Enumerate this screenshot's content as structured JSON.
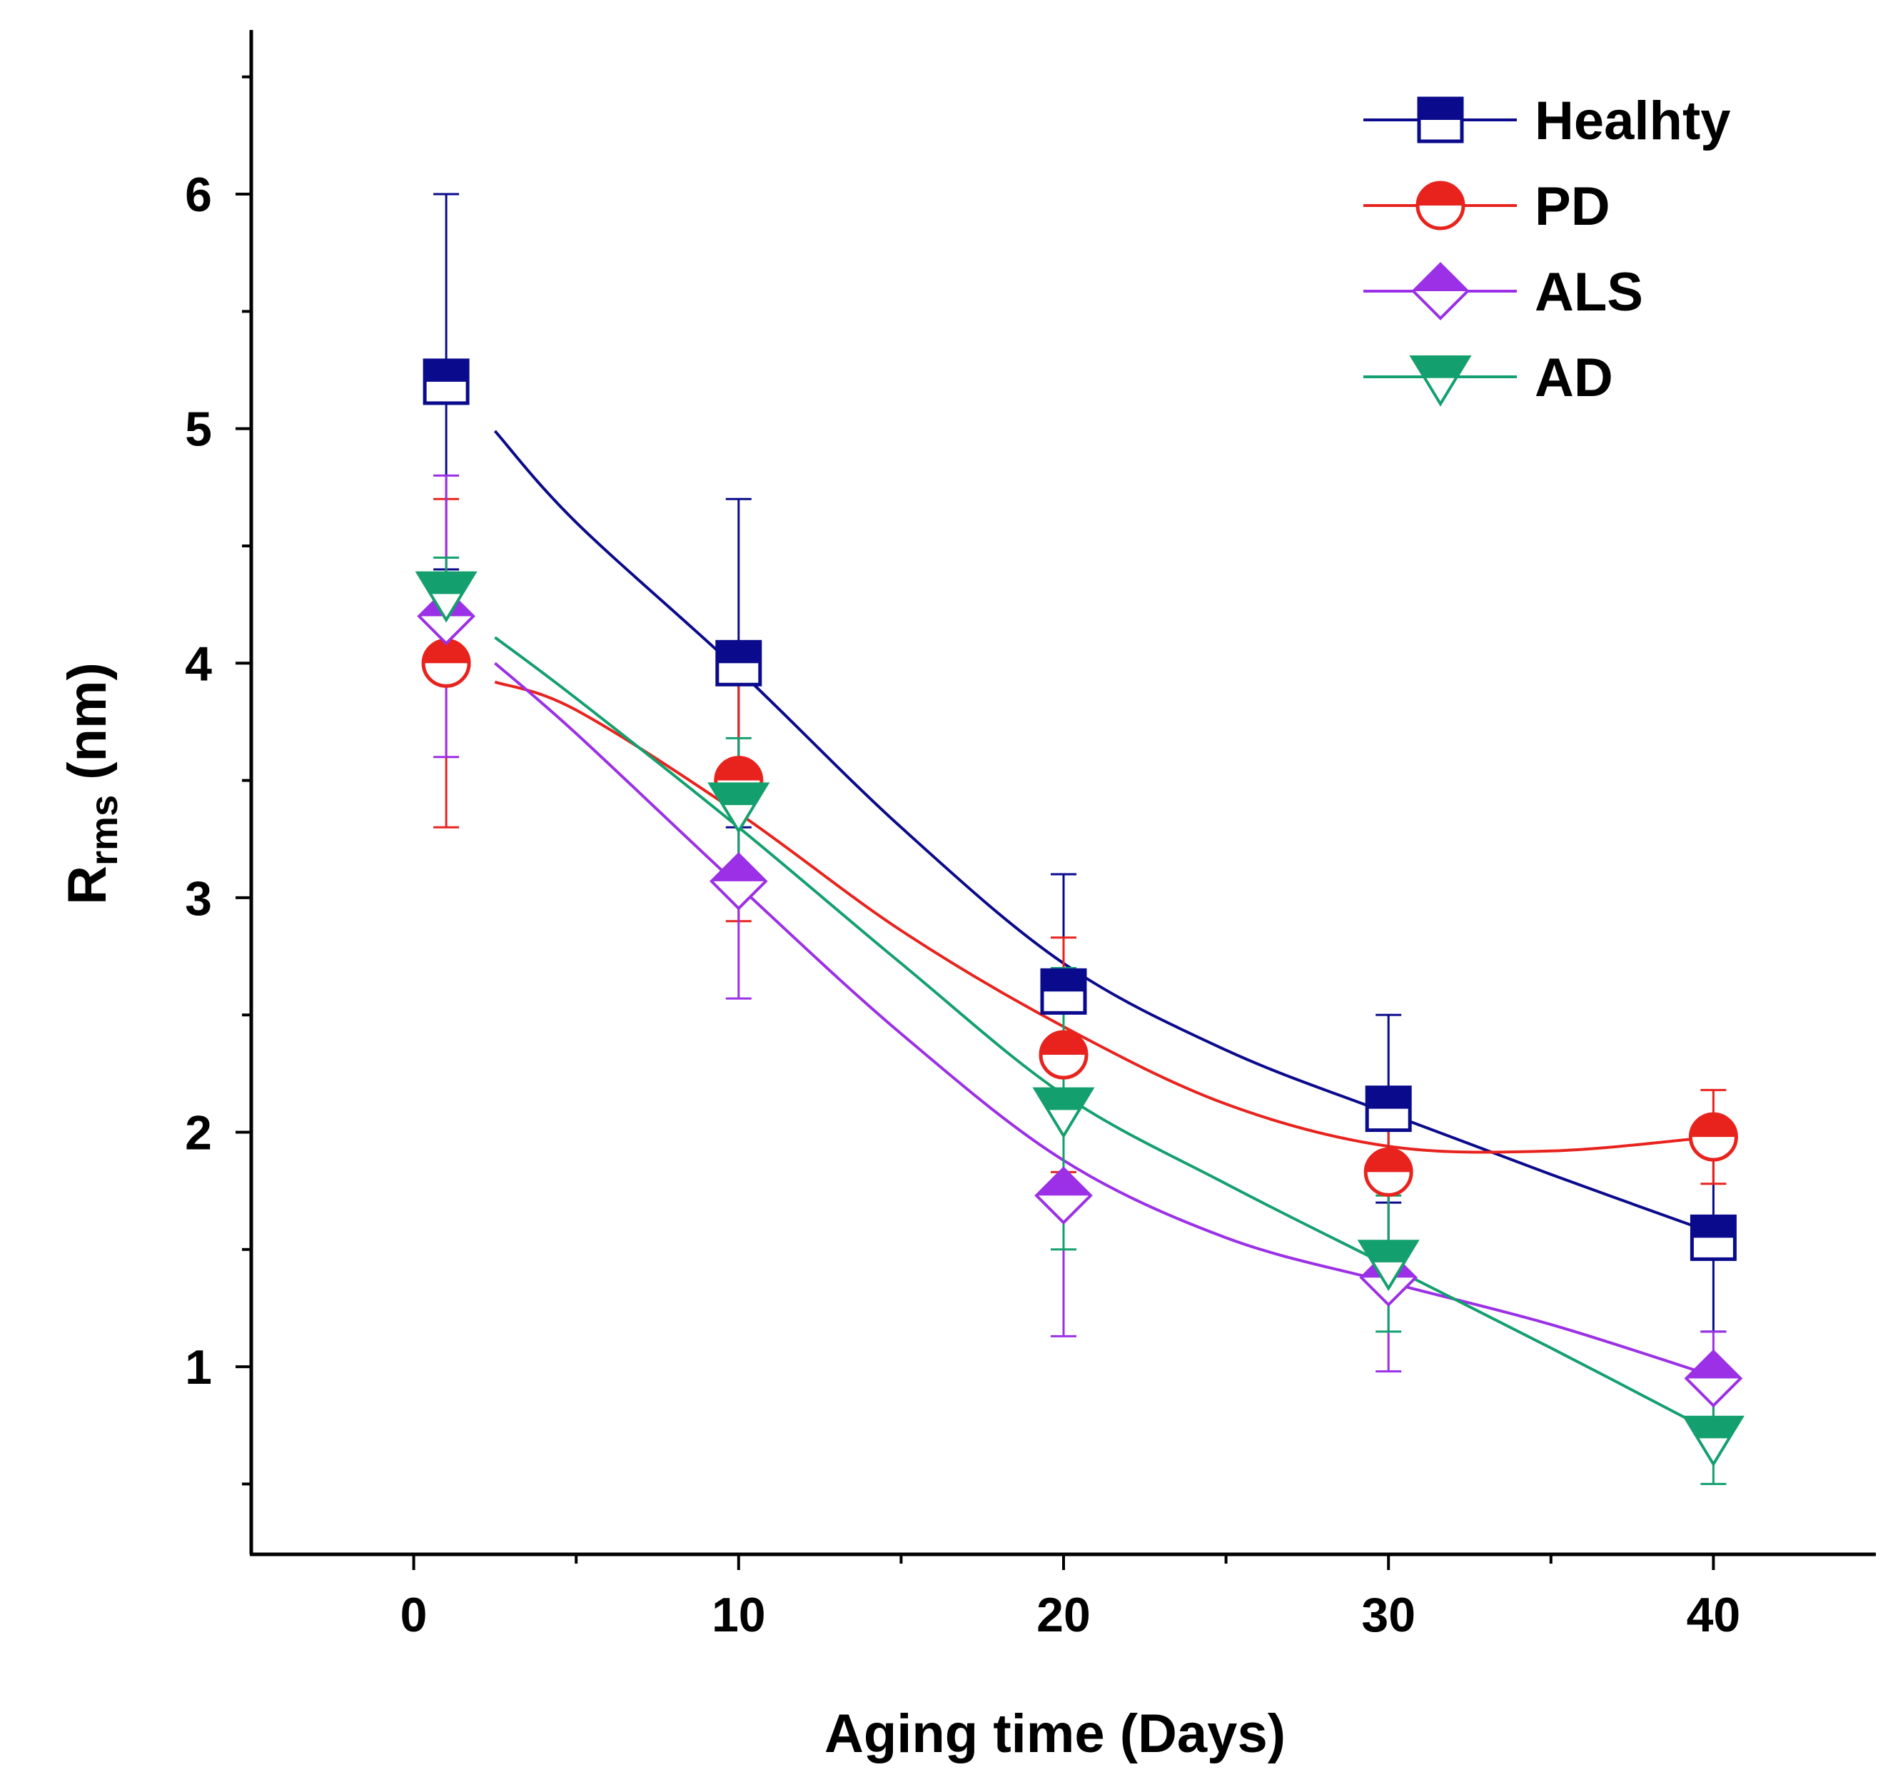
{
  "chart_data": {
    "type": "line",
    "title": "",
    "xlabel": "Aging time (Days)",
    "ylabel": {
      "main": "R",
      "sub": "rms",
      "unit": " (nm)"
    },
    "xlim": [
      -5,
      45
    ],
    "ylim": [
      0.2,
      6.7
    ],
    "x_ticks": [
      0,
      10,
      20,
      30,
      40
    ],
    "x_tick_labels": [
      "0",
      "10",
      "20",
      "30",
      "40"
    ],
    "y_ticks": [
      1,
      2,
      3,
      4,
      5,
      6
    ],
    "y_tick_labels": [
      "1",
      "2",
      "3",
      "4",
      "5",
      "6"
    ],
    "x_minor_ticks": [
      5,
      15,
      25,
      35
    ],
    "y_minor_ticks": [
      0.5,
      1.5,
      2.5,
      3.5,
      4.5,
      5.5,
      6.5
    ],
    "legend_position": "top-right",
    "series": [
      {
        "name": "Healhty",
        "color": "#0a0a8c",
        "marker": "square",
        "x": [
          1,
          10,
          20,
          30,
          40
        ],
        "y": [
          5.2,
          4.0,
          2.6,
          2.1,
          1.55
        ],
        "err_up": [
          0.8,
          0.7,
          0.5,
          0.4,
          0.4
        ],
        "err_down": [
          0.8,
          0.7,
          0.5,
          0.4,
          0.4
        ],
        "fit_x": [
          2.5,
          5,
          10,
          15,
          20,
          25,
          30,
          35,
          40
        ],
        "fit_y": [
          4.99,
          4.6,
          3.97,
          3.3,
          2.72,
          2.35,
          2.08,
          1.82,
          1.57
        ]
      },
      {
        "name": "PD",
        "color": "#e8231e",
        "marker": "circle",
        "x": [
          1,
          10,
          20,
          30,
          40
        ],
        "y": [
          4.0,
          3.5,
          2.33,
          1.83,
          1.98
        ],
        "err_up": [
          0.7,
          0.5,
          0.5,
          0.3,
          0.2
        ],
        "err_down": [
          0.7,
          0.6,
          0.5,
          0.3,
          0.2
        ],
        "fit_x": [
          2.5,
          5,
          10,
          15,
          20,
          25,
          30,
          35,
          40
        ],
        "fit_y": [
          3.92,
          3.8,
          3.36,
          2.86,
          2.45,
          2.12,
          1.94,
          1.92,
          1.98
        ]
      },
      {
        "name": "ALS",
        "color": "#9b30e6",
        "marker": "diamond",
        "x": [
          1,
          10,
          20,
          30,
          40
        ],
        "y": [
          4.2,
          3.07,
          1.73,
          1.38,
          0.95
        ],
        "err_up": [
          0.6,
          0.5,
          0.4,
          0.4,
          0.2
        ],
        "err_down": [
          0.6,
          0.5,
          0.6,
          0.4,
          0.2
        ],
        "fit_x": [
          2.5,
          5,
          10,
          15,
          20,
          25,
          30,
          35,
          40
        ],
        "fit_y": [
          4.0,
          3.7,
          3.05,
          2.42,
          1.88,
          1.55,
          1.36,
          1.18,
          0.96
        ]
      },
      {
        "name": "AD",
        "color": "#14a06e",
        "marker": "triangle",
        "x": [
          1,
          10,
          20,
          30,
          40
        ],
        "y": [
          4.3,
          3.4,
          2.1,
          1.45,
          0.7
        ],
        "err_up": [
          0.15,
          0.28,
          0.6,
          0.28,
          0.2
        ],
        "err_down": [
          0.15,
          0.28,
          0.6,
          0.3,
          0.2
        ],
        "fit_x": [
          2.5,
          5,
          10,
          15,
          20,
          25,
          30,
          35,
          40
        ],
        "fit_y": [
          4.11,
          3.85,
          3.3,
          2.72,
          2.16,
          1.78,
          1.43,
          1.08,
          0.72
        ]
      }
    ]
  }
}
